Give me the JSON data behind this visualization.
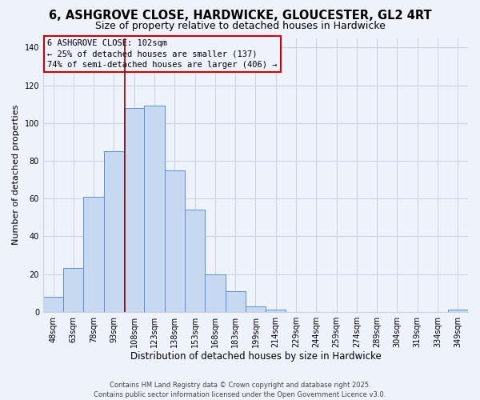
{
  "title_line1": "6, ASHGROVE CLOSE, HARDWICKE, GLOUCESTER, GL2 4RT",
  "title_line2": "Size of property relative to detached houses in Hardwicke",
  "xlabel": "Distribution of detached houses by size in Hardwicke",
  "ylabel": "Number of detached properties",
  "categories": [
    "48sqm",
    "63sqm",
    "78sqm",
    "93sqm",
    "108sqm",
    "123sqm",
    "138sqm",
    "153sqm",
    "168sqm",
    "183sqm",
    "199sqm",
    "214sqm",
    "229sqm",
    "244sqm",
    "259sqm",
    "274sqm",
    "289sqm",
    "304sqm",
    "319sqm",
    "334sqm",
    "349sqm"
  ],
  "values": [
    8,
    23,
    61,
    85,
    108,
    109,
    75,
    54,
    20,
    11,
    3,
    1,
    0,
    0,
    0,
    0,
    0,
    0,
    0,
    0,
    1
  ],
  "bar_color": "#c6d9f1",
  "bar_edge_color": "#5b8fd4",
  "background_color": "#eef2fb",
  "grid_color": "#c8d0e0",
  "annotation_line1": "6 ASHGROVE CLOSE: 102sqm",
  "annotation_line2": "← 25% of detached houses are smaller (137)",
  "annotation_line3": "74% of semi-detached houses are larger (406) →",
  "annotation_box_edge": "#cc0000",
  "vline_color": "#8b0000",
  "ylim": [
    0,
    145
  ],
  "yticks": [
    0,
    20,
    40,
    60,
    80,
    100,
    120,
    140
  ],
  "footer_line1": "Contains HM Land Registry data © Crown copyright and database right 2025.",
  "footer_line2": "Contains public sector information licensed under the Open Government Licence v3.0.",
  "title_fontsize": 10.5,
  "subtitle_fontsize": 9,
  "xlabel_fontsize": 8.5,
  "ylabel_fontsize": 8,
  "tick_fontsize": 7,
  "footer_fontsize": 6,
  "annotation_fontsize": 7.5
}
